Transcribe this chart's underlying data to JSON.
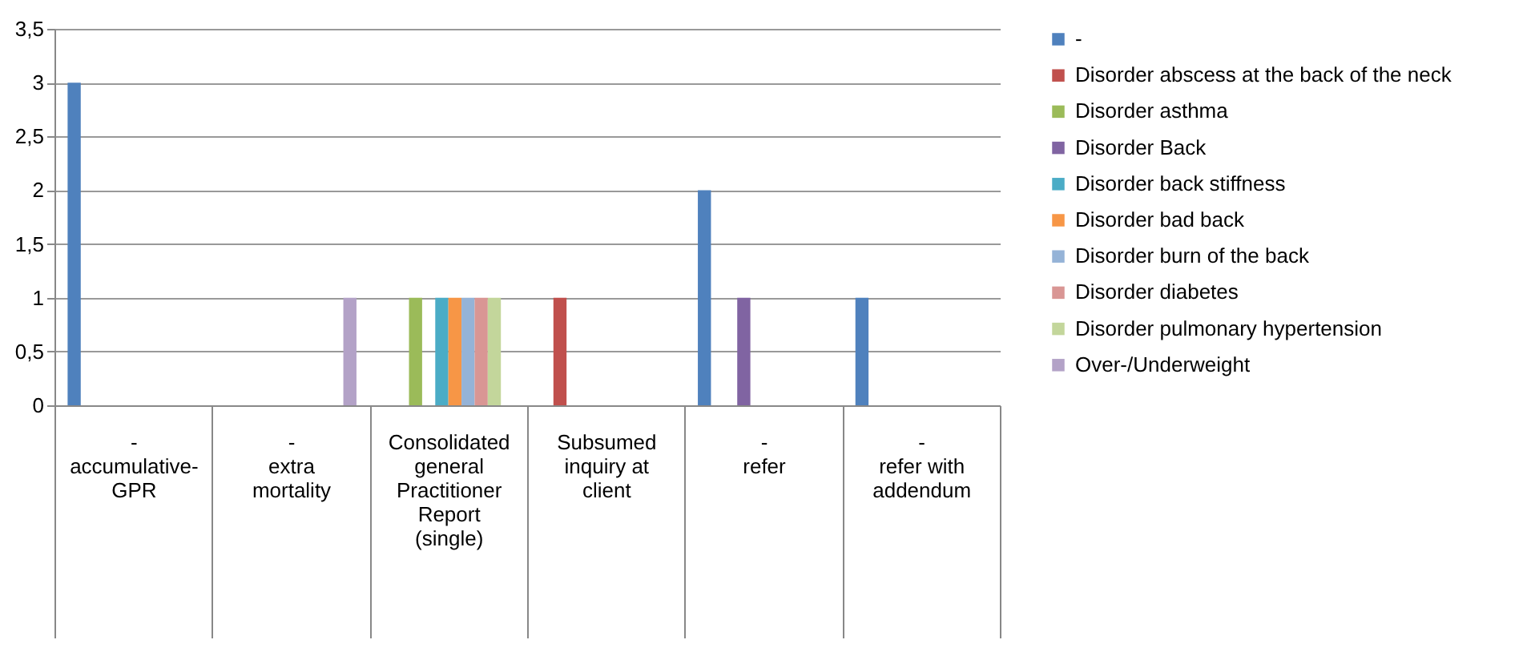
{
  "chart_data": {
    "type": "bar",
    "categories": [
      "-\naccumulative-GPR",
      "-\nextra mortality",
      "Consolidated\ngeneral Practitioner Report (single)",
      "Subsumed\ninquiry at client",
      "-\nrefer",
      "-\nrefer with addendum"
    ],
    "series": [
      {
        "name": "-",
        "color": "#4f81bd",
        "values": [
          3,
          null,
          null,
          null,
          2,
          1
        ]
      },
      {
        "name": "Disorder abscess at the back of the neck",
        "color": "#c0504d",
        "values": [
          null,
          null,
          null,
          1,
          null,
          null
        ]
      },
      {
        "name": "Disorder asthma",
        "color": "#9bbb59",
        "values": [
          null,
          null,
          1,
          null,
          null,
          null
        ]
      },
      {
        "name": "Disorder Back",
        "color": "#8064a2",
        "values": [
          null,
          null,
          null,
          null,
          1,
          null
        ]
      },
      {
        "name": "Disorder back stiffness",
        "color": "#4bacc6",
        "values": [
          null,
          null,
          1,
          null,
          null,
          null
        ]
      },
      {
        "name": "Disorder bad back",
        "color": "#f79646",
        "values": [
          null,
          null,
          1,
          null,
          null,
          null
        ]
      },
      {
        "name": "Disorder burn of the back",
        "color": "#95b3d7",
        "values": [
          null,
          null,
          1,
          null,
          null,
          null
        ]
      },
      {
        "name": "Disorder diabetes",
        "color": "#d99694",
        "values": [
          null,
          null,
          1,
          null,
          null,
          null
        ]
      },
      {
        "name": "Disorder pulmonary hypertension",
        "color": "#c3d69b",
        "values": [
          null,
          null,
          1,
          null,
          null,
          null
        ]
      },
      {
        "name": "Over-/Underweight",
        "color": "#b3a2c7",
        "values": [
          null,
          1,
          null,
          null,
          null,
          null
        ]
      }
    ],
    "ylim": [
      0,
      3.5
    ],
    "yticks": [
      0,
      {
        "value": 0.5,
        "label": "0,5"
      },
      1,
      {
        "value": 1.5,
        "label": "1,5"
      },
      2,
      {
        "value": 2.5,
        "label": "2,5"
      },
      3,
      {
        "value": 3.5,
        "label": "3,5"
      }
    ],
    "grid": "y",
    "legend": "right"
  }
}
